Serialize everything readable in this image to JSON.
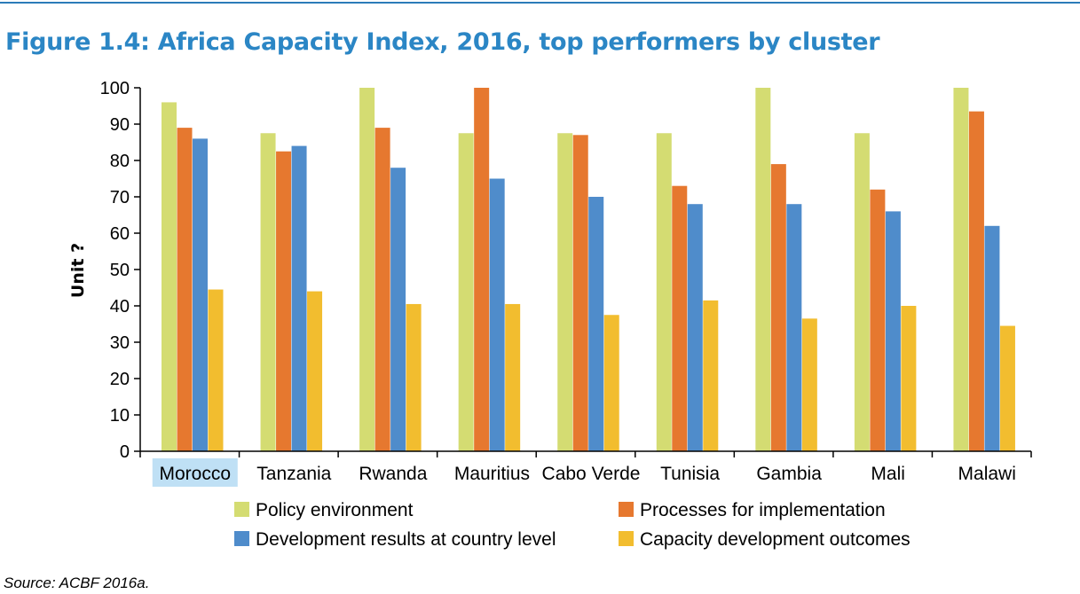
{
  "title": "Figure 1.4: Africa Capacity Index, 2016, top performers by cluster",
  "source": "Source: ACBF 2016a.",
  "chart_data": {
    "type": "bar",
    "title": "Figure 1.4: Africa Capacity Index, 2016, top performers by cluster",
    "xlabel": "",
    "ylabel": "Unit ?",
    "ylim": [
      0,
      100
    ],
    "yticks": [
      0,
      10,
      20,
      30,
      40,
      50,
      60,
      70,
      80,
      90,
      100
    ],
    "grid": false,
    "legend_position": "bottom",
    "highlighted_category": "Morocco",
    "highlight_color": "#bfe0f5",
    "categories": [
      "Morocco",
      "Tanzania",
      "Rwanda",
      "Mauritius",
      "Cabo Verde",
      "Tunisia",
      "Gambia",
      "Mali",
      "Malawi"
    ],
    "series": [
      {
        "name": "Policy environment",
        "color": "#d4dc72",
        "values": [
          96,
          87.5,
          100,
          87.5,
          87.5,
          87.5,
          100,
          87.5,
          100
        ]
      },
      {
        "name": "Processes for implementation",
        "color": "#e6782f",
        "values": [
          89,
          82.5,
          89,
          100,
          87,
          73,
          79,
          72,
          93.5
        ]
      },
      {
        "name": "Development results at country level",
        "color": "#4f8ccb",
        "values": [
          86,
          84,
          78,
          75,
          70,
          68,
          68,
          66,
          62
        ]
      },
      {
        "name": "Capacity development outcomes",
        "color": "#f2bd2f",
        "values": [
          44.5,
          44,
          40.5,
          40.5,
          37.5,
          41.5,
          36.5,
          40,
          34.5
        ]
      }
    ]
  }
}
